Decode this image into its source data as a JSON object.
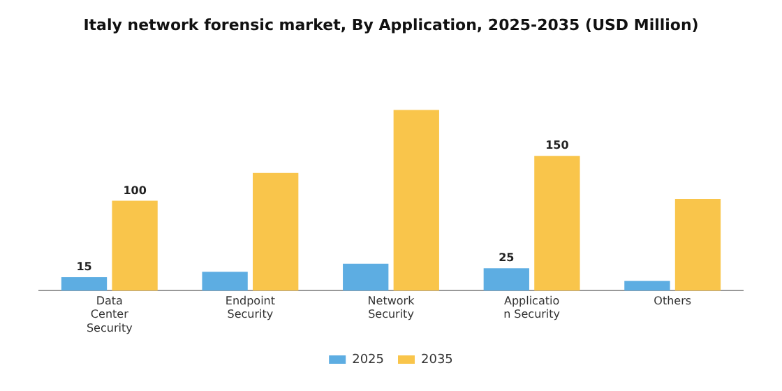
{
  "chart_data": {
    "type": "bar",
    "title": "Italy network forensic market, By Application, 2025-2035 (USD Million)",
    "categories": [
      "Data\nCenter\nSecurity",
      "Endpoint\nSecurity",
      "Network\nSecurity",
      "Applicatio\nn Security",
      "Others"
    ],
    "series": [
      {
        "name": "2025",
        "color": "#5dade2",
        "values": [
          15,
          21,
          30,
          25,
          11
        ],
        "value_labels": [
          "15",
          null,
          null,
          "25",
          null
        ]
      },
      {
        "name": "2035",
        "color": "#f9c54b",
        "values": [
          100,
          131,
          201,
          150,
          102
        ],
        "value_labels": [
          "100",
          null,
          null,
          "150",
          null
        ]
      }
    ],
    "legend": "bottom",
    "grid": false
  }
}
